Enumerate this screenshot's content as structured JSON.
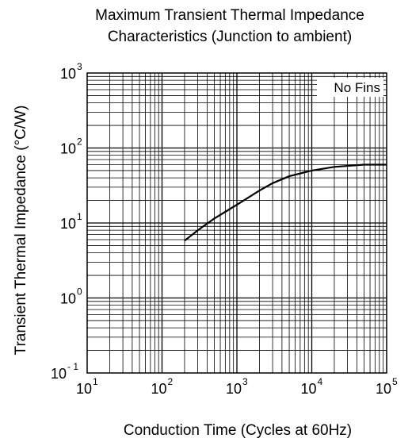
{
  "chart_data": {
    "type": "line",
    "title_lines": [
      "Maximum Transient Thermal Impedance",
      "Characteristics (Junction to ambient)"
    ],
    "xlabel": "Conduction Time (Cycles at 60Hz)",
    "ylabel": "Transient Thermal Impedance (°C/W)",
    "x_scale": "log",
    "y_scale": "log",
    "xlim": [
      10,
      100000
    ],
    "ylim": [
      0.1,
      1000
    ],
    "x_ticks": [
      {
        "base": "10",
        "exp": "1"
      },
      {
        "base": "10",
        "exp": "2"
      },
      {
        "base": "10",
        "exp": "3"
      },
      {
        "base": "10",
        "exp": "4"
      },
      {
        "base": "10",
        "exp": "5"
      }
    ],
    "y_ticks": [
      {
        "base": "10",
        "exp": "- 1"
      },
      {
        "base": "10",
        "exp": "0"
      },
      {
        "base": "10",
        "exp": "1"
      },
      {
        "base": "10",
        "exp": "2"
      },
      {
        "base": "10",
        "exp": "3"
      }
    ],
    "grid": true,
    "legend_label": "No Fins",
    "legend_position": "top-right",
    "series": [
      {
        "name": "No Fins",
        "x": [
          200,
          300,
          500,
          1000,
          2000,
          3000,
          5000,
          10000,
          20000,
          50000,
          100000
        ],
        "y": [
          5.8,
          8.0,
          11.5,
          17.5,
          27,
          34,
          42,
          50,
          56,
          60,
          60
        ]
      }
    ]
  }
}
